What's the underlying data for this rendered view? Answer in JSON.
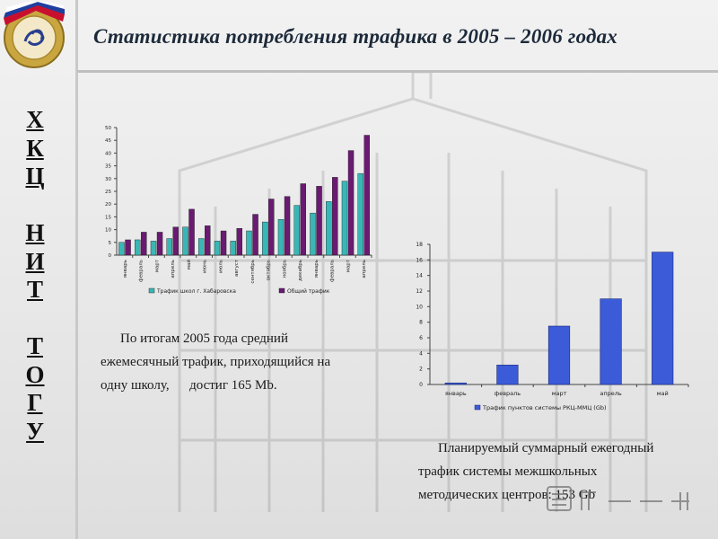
{
  "page": {
    "title": "Статистика потребления трафика в 2005 – 2006 годах",
    "vertical_letters": [
      "Х",
      "К",
      "Ц",
      "",
      "Н",
      "И",
      "Т",
      "",
      "Т",
      "О",
      "Г",
      "У"
    ],
    "paragraph1": {
      "line1": "По итогам 2005 года средний",
      "line2": "ежемесячный трафик, приходящийся на",
      "line3": "одну школу,      достиг 165 Mb."
    },
    "paragraph2": {
      "line1": "Планируемый суммарный ежегодный",
      "line2": "трафик системы межшкольных",
      "line3": "методических центров: 153 Gb"
    },
    "colors": {
      "teal": "#3bb6b6",
      "purple": "#6a1a72",
      "blue": "#3c5bd8",
      "title": "#1d2a3a"
    }
  },
  "chart_data": [
    {
      "type": "bar",
      "categories": [
        "январь",
        "февраль",
        "март",
        "апрель",
        "май",
        "июнь",
        "июль",
        "август",
        "сентябрь",
        "октябрь",
        "ноябрь",
        "декабрь",
        "январь",
        "февраль",
        "март",
        "апрель"
      ],
      "series": [
        {
          "name": "Трафик школ г. Хабаровска",
          "color": "#3bb6b6",
          "values": [
            5,
            6,
            5.5,
            6.5,
            11,
            6.5,
            5.5,
            5.5,
            9.5,
            13,
            14,
            19.5,
            16.5,
            21,
            29,
            32
          ]
        },
        {
          "name": "Общий трафик",
          "color": "#6a1a72",
          "values": [
            6,
            9,
            9,
            11,
            18,
            11.5,
            9.5,
            10.5,
            16,
            22,
            23,
            28,
            27,
            30.5,
            41,
            47
          ]
        }
      ],
      "yticks": [
        "0",
        "5",
        "10",
        "15",
        "20",
        "25",
        "30",
        "35",
        "40",
        "45",
        "50"
      ],
      "ylim": [
        0,
        50
      ],
      "legend_position": "bottom"
    },
    {
      "type": "bar",
      "categories": [
        "январь",
        "февраль",
        "март",
        "апрель",
        "май"
      ],
      "series": [
        {
          "name": "Трафик пунктов системы РКЦ-ММЦ (Gb)",
          "color": "#3c5bd8",
          "values": [
            0.2,
            2.5,
            7.5,
            11,
            17
          ]
        }
      ],
      "yticks": [
        "0",
        "2",
        "4",
        "6",
        "8",
        "10",
        "12",
        "14",
        "16",
        "18"
      ],
      "ylim": [
        0,
        18
      ],
      "legend_position": "bottom"
    }
  ]
}
